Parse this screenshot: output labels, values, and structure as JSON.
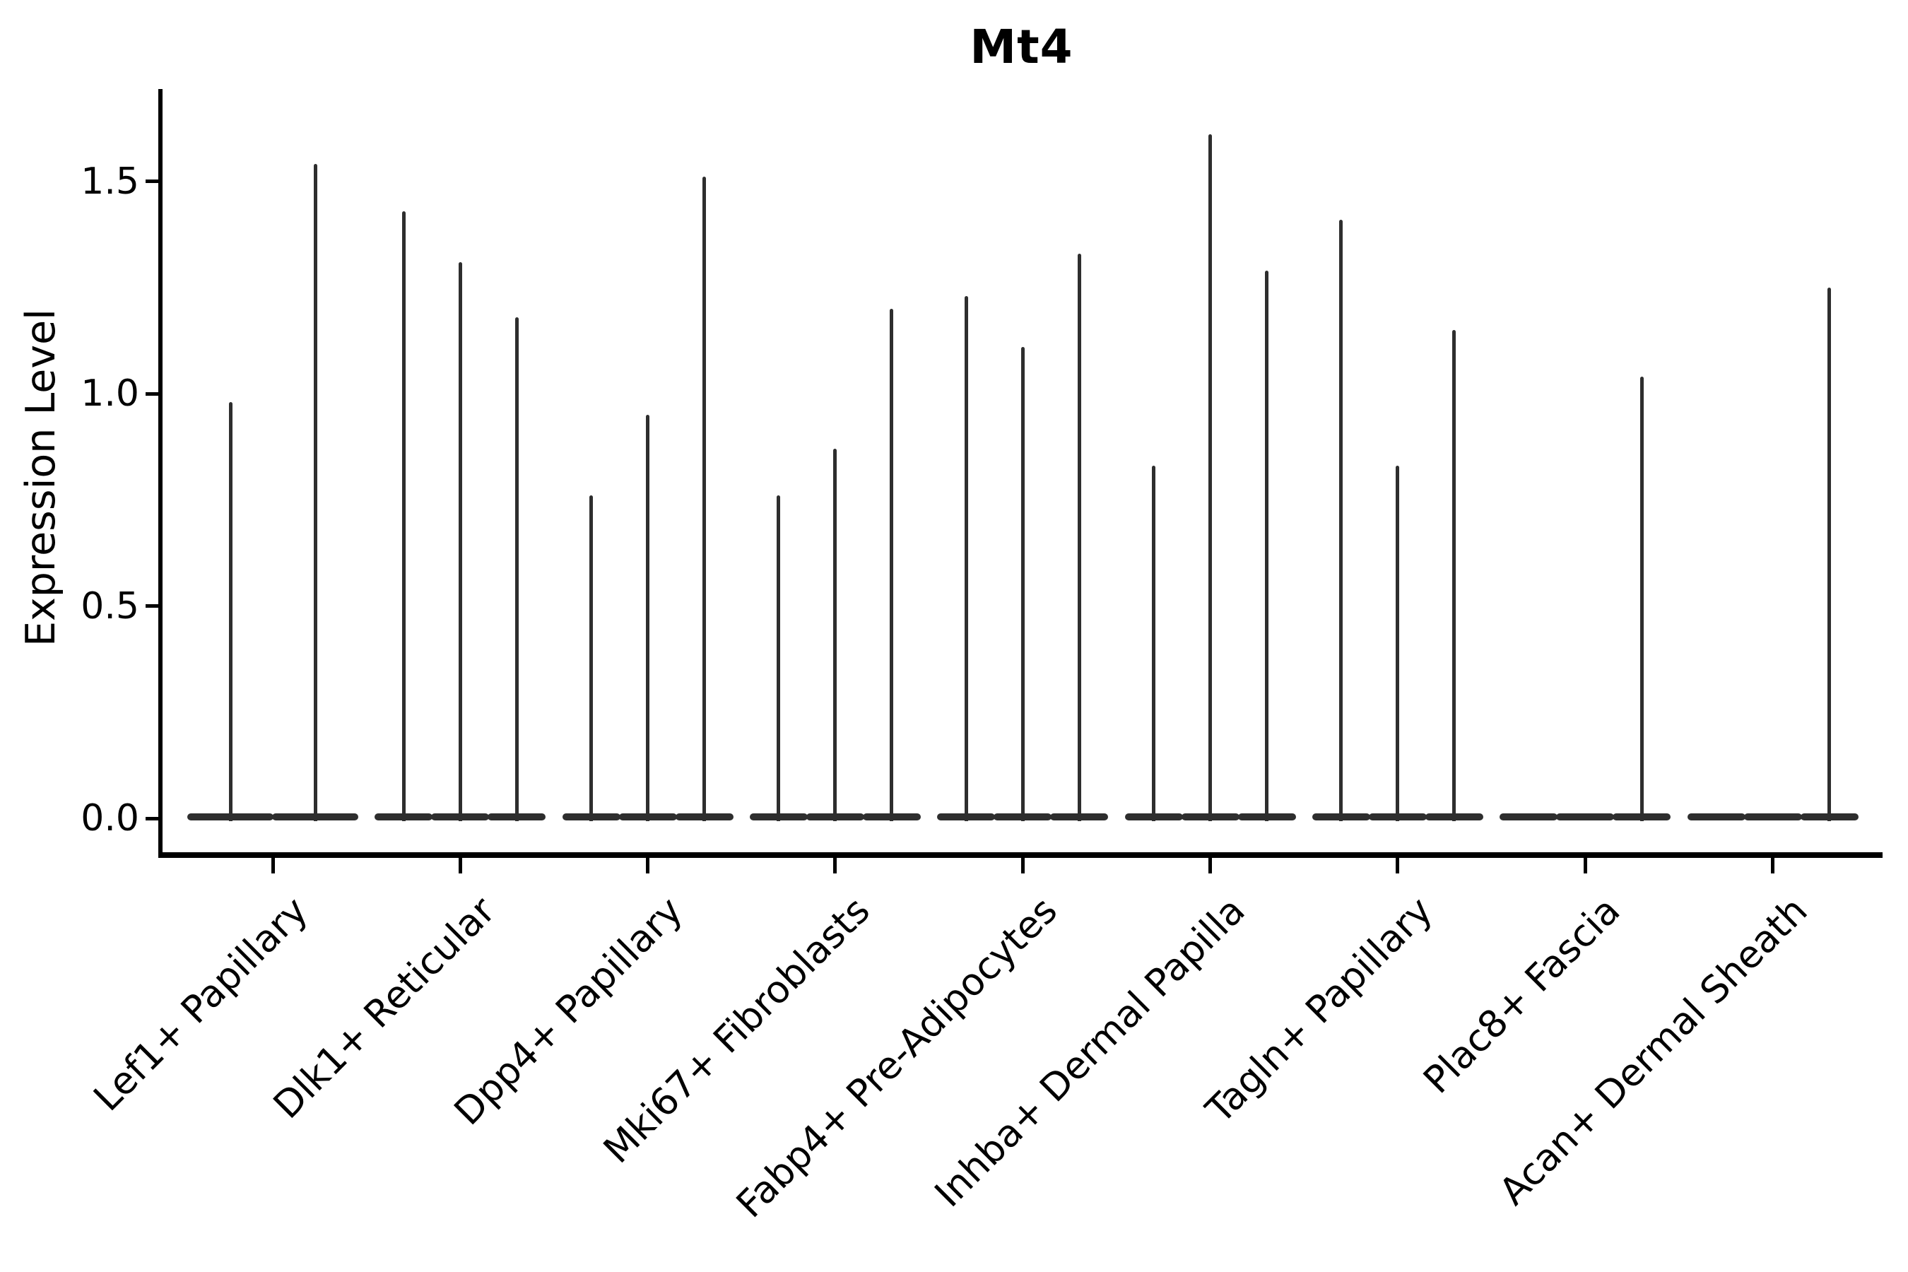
{
  "chart_data": {
    "type": "violin",
    "title": "Mt4",
    "xlabel": "",
    "ylabel": "Expression Level",
    "yticks": [
      "0.0",
      "0.5",
      "1.0",
      "1.5"
    ],
    "ytick_values": [
      0.0,
      0.5,
      1.0,
      1.5
    ],
    "ylim": [
      0,
      1.72
    ],
    "grid": false,
    "legend": "none",
    "x_tick_rotation_deg": 45,
    "violin_color": "#2e2e2e",
    "axis_color": "#000000",
    "description": "Violin plot of Mt4 expression; most cells at 0 so violins render as wide flat bases at 0 with thin spikes up to each violin's maximum expression value.",
    "categories": [
      "Lef1+ Papillary",
      "Dlk1+ Reticular",
      "Dpp4+ Papillary",
      "Mki67+ Fibroblasts",
      "Fabp4+ Pre-Adipocytes",
      "Inhba+ Dermal Papilla",
      "Tagln+ Papillary",
      "Plac8+ Fascia",
      "Acan+ Dermal Sheath"
    ],
    "groups": [
      {
        "label": "Lef1+ Papillary",
        "violin_maxima": [
          0.98,
          1.54
        ]
      },
      {
        "label": "Dlk1+ Reticular",
        "violin_maxima": [
          1.43,
          1.31,
          1.18
        ]
      },
      {
        "label": "Dpp4+ Papillary",
        "violin_maxima": [
          0.76,
          0.95,
          1.51
        ]
      },
      {
        "label": "Mki67+ Fibroblasts",
        "violin_maxima": [
          0.76,
          0.87,
          1.2
        ]
      },
      {
        "label": "Fabp4+ Pre-Adipocytes",
        "violin_maxima": [
          1.23,
          1.11,
          1.33
        ]
      },
      {
        "label": "Inhba+ Dermal Papilla",
        "violin_maxima": [
          0.83,
          1.61,
          1.29
        ]
      },
      {
        "label": "Tagln+ Papillary",
        "violin_maxima": [
          1.41,
          0.83,
          1.15
        ]
      },
      {
        "label": "Plac8+ Fascia",
        "violin_maxima": [
          0.0,
          0.0,
          1.04
        ]
      },
      {
        "label": "Acan+ Dermal Sheath",
        "violin_maxima": [
          0.0,
          0.0,
          1.25
        ]
      }
    ]
  }
}
